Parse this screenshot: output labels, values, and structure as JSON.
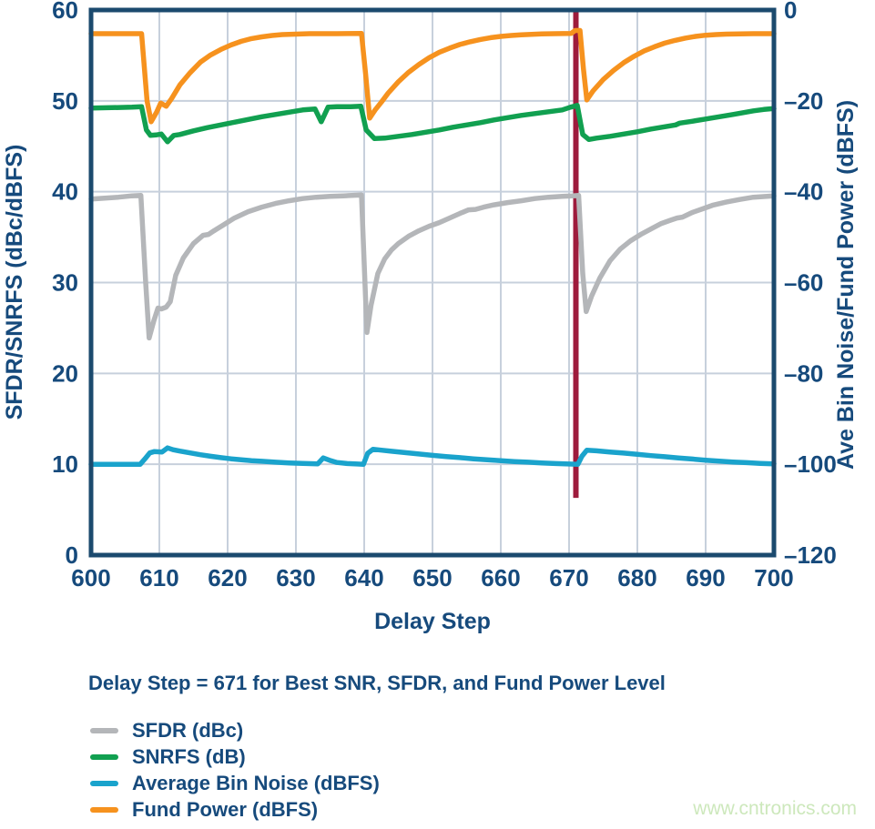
{
  "caption": "Delay Step = 671 for Best SNR, SFDR, and Fund Power Level",
  "watermark": "www.cntronics.com",
  "colors": {
    "axis_text": "#164A7C",
    "plot_border": "#1B4A6E",
    "gridline": "#C7D0DC",
    "marker_line": "#9E1B3C",
    "background": "#FFFFFF",
    "watermark": "#CDE8BC"
  },
  "chart_data": {
    "type": "line",
    "title": "",
    "xlabel": "Delay Step",
    "ylabel_left": "SFDR/SNRFS (dBc/dBFS)",
    "ylabel_right": "Ave Bin Noise/Fund Power (dBFS)",
    "grid": true,
    "legend_position": "below",
    "x_range": [
      600,
      700
    ],
    "x_ticks": [
      600,
      610,
      620,
      630,
      640,
      650,
      660,
      670,
      680,
      690,
      700
    ],
    "left_axis": {
      "range": [
        0,
        60
      ],
      "ticks": [
        60,
        50,
        40,
        30,
        20,
        10,
        0
      ],
      "tick_labels": [
        "60",
        "50",
        "40",
        "30",
        "20",
        "10",
        "0"
      ]
    },
    "right_axis": {
      "range": [
        -120,
        0
      ],
      "ticks": [
        0,
        -20,
        -40,
        -60,
        -80,
        -100,
        -120
      ],
      "tick_labels": [
        "0",
        "–20",
        "–40",
        "–60",
        "–80",
        "–100",
        "–120"
      ]
    },
    "marker_line": {
      "x": 671,
      "color": "#9E1B3C",
      "y_span_left_units": [
        6.3,
        60
      ],
      "meaning": "Delay Step = 671 for Best SNR, SFDR, and Fund Power Level"
    },
    "series": [
      {
        "name": "SFDR (dBc)",
        "axis": "left",
        "color": "#B4B6B9",
        "points": [
          [
            600,
            39.2
          ],
          [
            602,
            39.3
          ],
          [
            604,
            39.4
          ],
          [
            606,
            39.55
          ],
          [
            607.3,
            39.6
          ],
          [
            608,
            30
          ],
          [
            608.5,
            23.9
          ],
          [
            609.2,
            25.8
          ],
          [
            609.8,
            27.2
          ],
          [
            610.3,
            27.1
          ],
          [
            611,
            27.3
          ],
          [
            611.6,
            27.9
          ],
          [
            612.4,
            30.8
          ],
          [
            613.5,
            32.7
          ],
          [
            615,
            34.3
          ],
          [
            616.4,
            35.2
          ],
          [
            617.2,
            35.3
          ],
          [
            618,
            35.7
          ],
          [
            619.5,
            36.4
          ],
          [
            621,
            37.1
          ],
          [
            623,
            37.8
          ],
          [
            625,
            38.3
          ],
          [
            627,
            38.7
          ],
          [
            629,
            39
          ],
          [
            631,
            39.25
          ],
          [
            633,
            39.4
          ],
          [
            635,
            39.5
          ],
          [
            637,
            39.55
          ],
          [
            639.6,
            39.65
          ],
          [
            640.4,
            24.5
          ],
          [
            641,
            27.5
          ],
          [
            642,
            31
          ],
          [
            643,
            32.6
          ],
          [
            644,
            33.6
          ],
          [
            645,
            34.3
          ],
          [
            646.5,
            35.1
          ],
          [
            648,
            35.7
          ],
          [
            649.5,
            36.2
          ],
          [
            651,
            36.6
          ],
          [
            652.5,
            37.1
          ],
          [
            654,
            37.6
          ],
          [
            655.3,
            38
          ],
          [
            656.3,
            38.05
          ],
          [
            657.5,
            38.3
          ],
          [
            659,
            38.55
          ],
          [
            661,
            38.8
          ],
          [
            663,
            39
          ],
          [
            665,
            39.25
          ],
          [
            667,
            39.4
          ],
          [
            669,
            39.5
          ],
          [
            670.5,
            39.55
          ],
          [
            671.4,
            39.6
          ],
          [
            672,
            31
          ],
          [
            672.5,
            26.8
          ],
          [
            673.3,
            28.5
          ],
          [
            674.5,
            30.5
          ],
          [
            676,
            32.4
          ],
          [
            677.5,
            33.7
          ],
          [
            679,
            34.6
          ],
          [
            680.5,
            35.3
          ],
          [
            682,
            35.9
          ],
          [
            683.5,
            36.5
          ],
          [
            685,
            36.9
          ],
          [
            685.8,
            37.1
          ],
          [
            686.6,
            37.2
          ],
          [
            688,
            37.7
          ],
          [
            689.5,
            38.1
          ],
          [
            691,
            38.5
          ],
          [
            693,
            38.85
          ],
          [
            695,
            39.15
          ],
          [
            697,
            39.4
          ],
          [
            699,
            39.5
          ],
          [
            700,
            39.55
          ]
        ]
      },
      {
        "name": "SNRFS (dB)",
        "axis": "left",
        "color": "#11A050",
        "points": [
          [
            600,
            49.2
          ],
          [
            603,
            49.25
          ],
          [
            606,
            49.3
          ],
          [
            607.4,
            49.35
          ],
          [
            608.1,
            46.8
          ],
          [
            608.7,
            46.2
          ],
          [
            609.5,
            46.25
          ],
          [
            610.3,
            46.35
          ],
          [
            611.2,
            45.5
          ],
          [
            612.1,
            46.2
          ],
          [
            613,
            46.3
          ],
          [
            615,
            46.7
          ],
          [
            617,
            47.05
          ],
          [
            619,
            47.35
          ],
          [
            621,
            47.65
          ],
          [
            623,
            47.95
          ],
          [
            625,
            48.25
          ],
          [
            627,
            48.5
          ],
          [
            629,
            48.75
          ],
          [
            631,
            49
          ],
          [
            632.8,
            49.1
          ],
          [
            633.7,
            47.7
          ],
          [
            634.7,
            49.3
          ],
          [
            636,
            49.35
          ],
          [
            638,
            49.35
          ],
          [
            639.5,
            49.4
          ],
          [
            640.3,
            46.8
          ],
          [
            641.5,
            45.85
          ],
          [
            643,
            45.9
          ],
          [
            645,
            46.1
          ],
          [
            647,
            46.3
          ],
          [
            649,
            46.55
          ],
          [
            651,
            46.8
          ],
          [
            653,
            47.1
          ],
          [
            655,
            47.35
          ],
          [
            657,
            47.6
          ],
          [
            659,
            47.9
          ],
          [
            661,
            48.15
          ],
          [
            663,
            48.4
          ],
          [
            665,
            48.6
          ],
          [
            667,
            48.8
          ],
          [
            669,
            49
          ],
          [
            670.2,
            49.3
          ],
          [
            671.2,
            49.5
          ],
          [
            672,
            46.3
          ],
          [
            672.9,
            45.75
          ],
          [
            674,
            45.9
          ],
          [
            676,
            46.1
          ],
          [
            678,
            46.35
          ],
          [
            680,
            46.6
          ],
          [
            682,
            46.9
          ],
          [
            684,
            47.15
          ],
          [
            685.6,
            47.35
          ],
          [
            686.2,
            47.55
          ],
          [
            688,
            47.75
          ],
          [
            690,
            48
          ],
          [
            692,
            48.25
          ],
          [
            694,
            48.5
          ],
          [
            695.5,
            48.7
          ],
          [
            697,
            48.9
          ],
          [
            698.5,
            49.05
          ],
          [
            700,
            49.15
          ]
        ]
      },
      {
        "name": "Average Bin Noise (dBFS)",
        "axis": "right",
        "color": "#1AA3CC",
        "points": [
          [
            600,
            -100
          ],
          [
            607.2,
            -100
          ],
          [
            607.9,
            -98.8
          ],
          [
            608.6,
            -97.5
          ],
          [
            609.3,
            -97.2
          ],
          [
            610.4,
            -97.3
          ],
          [
            611.2,
            -96.4
          ],
          [
            612,
            -96.8
          ],
          [
            613,
            -97.1
          ],
          [
            614.5,
            -97.5
          ],
          [
            616,
            -97.9
          ],
          [
            617.5,
            -98.25
          ],
          [
            619,
            -98.55
          ],
          [
            620.5,
            -98.8
          ],
          [
            622,
            -99
          ],
          [
            623.5,
            -99.2
          ],
          [
            625,
            -99.35
          ],
          [
            627,
            -99.55
          ],
          [
            629,
            -99.7
          ],
          [
            631,
            -99.8
          ],
          [
            633.2,
            -99.9
          ],
          [
            634,
            -98.6
          ],
          [
            634.9,
            -99.1
          ],
          [
            636,
            -99.6
          ],
          [
            637.5,
            -99.85
          ],
          [
            639,
            -99.95
          ],
          [
            639.9,
            -100
          ],
          [
            640.5,
            -97.6
          ],
          [
            641.3,
            -96.7
          ],
          [
            642.5,
            -96.9
          ],
          [
            644,
            -97.15
          ],
          [
            646,
            -97.45
          ],
          [
            648,
            -97.75
          ],
          [
            650,
            -98.05
          ],
          [
            652,
            -98.3
          ],
          [
            654,
            -98.55
          ],
          [
            656,
            -98.8
          ],
          [
            658,
            -99
          ],
          [
            660,
            -99.2
          ],
          [
            662,
            -99.4
          ],
          [
            664,
            -99.55
          ],
          [
            666,
            -99.7
          ],
          [
            668,
            -99.85
          ],
          [
            670,
            -99.95
          ],
          [
            671.3,
            -100
          ],
          [
            671.9,
            -98.2
          ],
          [
            672.6,
            -96.9
          ],
          [
            674,
            -97.05
          ],
          [
            676,
            -97.3
          ],
          [
            678,
            -97.55
          ],
          [
            680,
            -97.8
          ],
          [
            682,
            -98.1
          ],
          [
            684,
            -98.35
          ],
          [
            686,
            -98.6
          ],
          [
            688,
            -98.85
          ],
          [
            690,
            -99.1
          ],
          [
            692,
            -99.3
          ],
          [
            694,
            -99.5
          ],
          [
            696,
            -99.65
          ],
          [
            698,
            -99.8
          ],
          [
            700,
            -99.9
          ]
        ]
      },
      {
        "name": "Fund Power (dBFS)",
        "axis": "right",
        "color": "#F6921E",
        "points": [
          [
            600,
            -5.2
          ],
          [
            606,
            -5.2
          ],
          [
            607.4,
            -5.2
          ],
          [
            608.2,
            -20
          ],
          [
            608.8,
            -24.6
          ],
          [
            609.6,
            -22.5
          ],
          [
            610.2,
            -20.5
          ],
          [
            611,
            -21.2
          ],
          [
            611.8,
            -19.5
          ],
          [
            613,
            -16.5
          ],
          [
            614.5,
            -13.8
          ],
          [
            616,
            -11.5
          ],
          [
            617.5,
            -9.9
          ],
          [
            619,
            -8.7
          ],
          [
            620.5,
            -7.7
          ],
          [
            622,
            -6.9
          ],
          [
            623.5,
            -6.3
          ],
          [
            625,
            -5.9
          ],
          [
            626.5,
            -5.6
          ],
          [
            628,
            -5.4
          ],
          [
            630,
            -5.3
          ],
          [
            632,
            -5.2
          ],
          [
            636,
            -5.2
          ],
          [
            639.6,
            -5.15
          ],
          [
            640.2,
            -14
          ],
          [
            640.8,
            -23.8
          ],
          [
            641.6,
            -22
          ],
          [
            642.5,
            -20.3
          ],
          [
            643.5,
            -18.3
          ],
          [
            645,
            -15.8
          ],
          [
            646.5,
            -13.7
          ],
          [
            648,
            -12
          ],
          [
            649.5,
            -10.5
          ],
          [
            651,
            -9.3
          ],
          [
            652.5,
            -8.4
          ],
          [
            654,
            -7.6
          ],
          [
            655.5,
            -7
          ],
          [
            657,
            -6.5
          ],
          [
            658.5,
            -6.1
          ],
          [
            660,
            -5.8
          ],
          [
            661.5,
            -5.6
          ],
          [
            663,
            -5.45
          ],
          [
            664.5,
            -5.35
          ],
          [
            666,
            -5.25
          ],
          [
            668,
            -5.2
          ],
          [
            670.3,
            -5.15
          ],
          [
            670.9,
            -4.5
          ],
          [
            671.6,
            -4.5
          ],
          [
            672.1,
            -13
          ],
          [
            672.6,
            -19.8
          ],
          [
            673.5,
            -17.8
          ],
          [
            675,
            -15.3
          ],
          [
            676.5,
            -13.3
          ],
          [
            678,
            -11.6
          ],
          [
            679.5,
            -10.2
          ],
          [
            681,
            -9
          ],
          [
            682.5,
            -8.1
          ],
          [
            684,
            -7.3
          ],
          [
            685.5,
            -6.7
          ],
          [
            687,
            -6.2
          ],
          [
            688.5,
            -5.8
          ],
          [
            690,
            -5.55
          ],
          [
            691.5,
            -5.4
          ],
          [
            693,
            -5.3
          ],
          [
            695,
            -5.25
          ],
          [
            697,
            -5.2
          ],
          [
            700,
            -5.2
          ]
        ]
      }
    ]
  },
  "legend": {
    "items": [
      {
        "label": "SFDR (dBc)"
      },
      {
        "label": "SNRFS (dB)"
      },
      {
        "label": "Average Bin Noise (dBFS)"
      },
      {
        "label": "Fund Power (dBFS)"
      }
    ]
  }
}
